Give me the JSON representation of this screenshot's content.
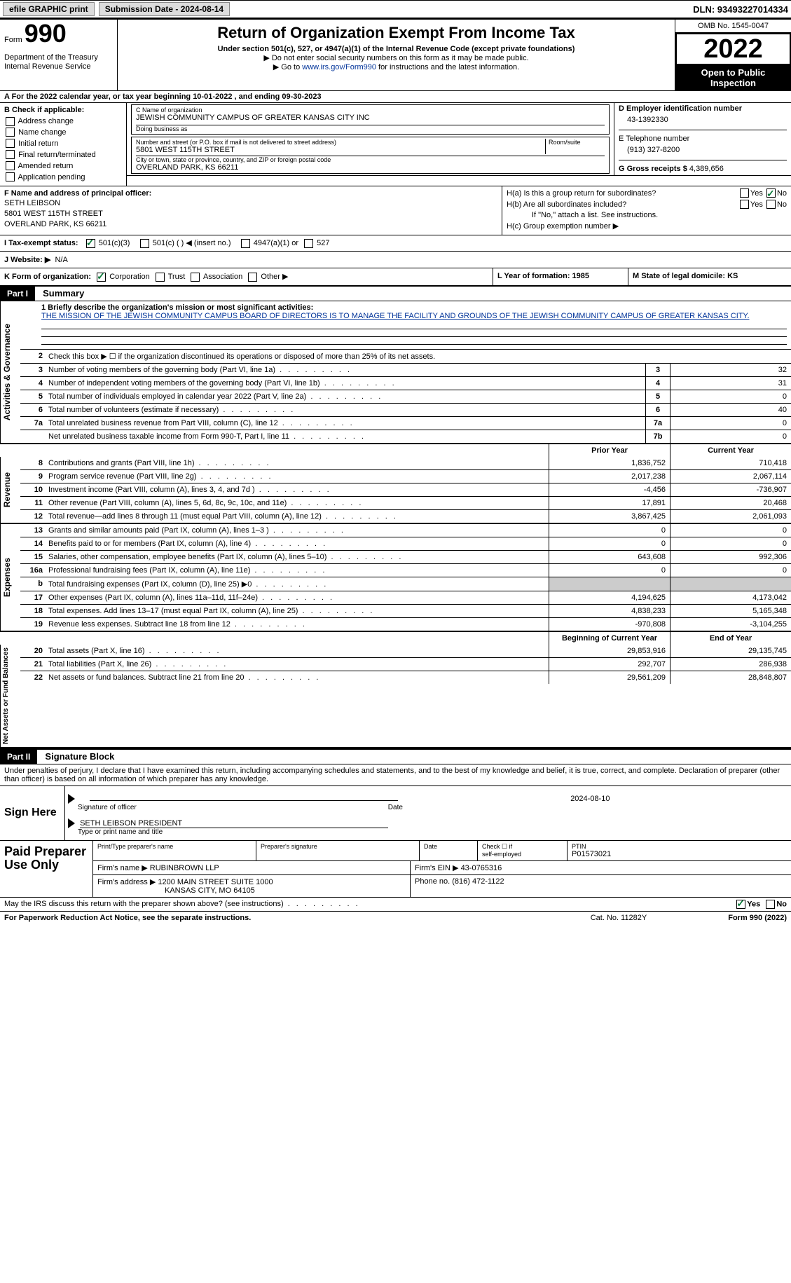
{
  "topbar": {
    "efile": "efile GRAPHIC print",
    "submission": "Submission Date - 2024-08-14",
    "dln": "DLN: 93493227014334"
  },
  "header": {
    "form_label": "Form",
    "form_num": "990",
    "title": "Return of Organization Exempt From Income Tax",
    "sub": "Under section 501(c), 527, or 4947(a)(1) of the Internal Revenue Code (except private foundations)",
    "note1": "▶ Do not enter social security numbers on this form as it may be made public.",
    "note2_pre": "▶ Go to ",
    "note2_link": "www.irs.gov/Form990",
    "note2_post": " for instructions and the latest information.",
    "omb": "OMB No. 1545-0047",
    "year": "2022",
    "open": "Open to Public Inspection",
    "dept": "Department of the Treasury",
    "irs": "Internal Revenue Service"
  },
  "row_a": "A For the 2022 calendar year, or tax year beginning 10-01-2022    , and ending 09-30-2023",
  "col_b": {
    "head": "B Check if applicable:",
    "items": [
      "Address change",
      "Name change",
      "Initial return",
      "Final return/terminated",
      "Amended return",
      "Application pending"
    ]
  },
  "box_c": {
    "name_label": "C Name of organization",
    "name": "JEWISH COMMUNITY CAMPUS OF GREATER KANSAS CITY INC",
    "dba_label": "Doing business as",
    "addr_label": "Number and street (or P.O. box if mail is not delivered to street address)",
    "room_label": "Room/suite",
    "addr": "5801 WEST 115TH STREET",
    "city_label": "City or town, state or province, country, and ZIP or foreign postal code",
    "city": "OVERLAND PARK, KS  66211"
  },
  "box_d": {
    "label": "D Employer identification number",
    "val": "43-1392330",
    "tel_label": "E Telephone number",
    "tel": "(913) 327-8200",
    "gross_label": "G Gross receipts $",
    "gross": "4,389,656"
  },
  "row_f": {
    "label": "F  Name and address of principal officer:",
    "name": "SETH LEIBSON",
    "addr1": "5801 WEST 115TH STREET",
    "addr2": "OVERLAND PARK, KS  66211"
  },
  "row_h": {
    "ha": "H(a)  Is this a group return for subordinates?",
    "hb": "H(b)  Are all subordinates included?",
    "hb_note": "If \"No,\" attach a list. See instructions.",
    "hc": "H(c)  Group exemption number ▶",
    "yes": "Yes",
    "no": "No"
  },
  "row_i": {
    "label": "I    Tax-exempt status:",
    "o1": "501(c)(3)",
    "o2": "501(c) (  ) ◀ (insert no.)",
    "o3": "4947(a)(1) or",
    "o4": "527"
  },
  "row_j": {
    "label": "J   Website: ▶",
    "val": "N/A"
  },
  "row_k": {
    "k": "K Form of organization:",
    "corp": "Corporation",
    "trust": "Trust",
    "assoc": "Association",
    "other": "Other ▶",
    "l": "L Year of formation: 1985",
    "m": "M State of legal domicile: KS"
  },
  "parts": {
    "p1": "Part I",
    "p1_title": "Summary",
    "p2": "Part II",
    "p2_title": "Signature Block"
  },
  "vtabs": {
    "act": "Activities & Governance",
    "rev": "Revenue",
    "exp": "Expenses",
    "net": "Net Assets or Fund Balances"
  },
  "mission": {
    "label": "1   Briefly describe the organization's mission or most significant activities:",
    "text": "THE MISSION OF THE JEWISH COMMUNITY CAMPUS BOARD OF DIRECTORS IS TO MANAGE THE FACILITY AND GROUNDS OF THE JEWISH COMMUNITY CAMPUS OF GREATER KANSAS CITY."
  },
  "gov": {
    "l2": "Check this box ▶ ☐ if the organization discontinued its operations or disposed of more than 25% of its net assets.",
    "l3": "Number of voting members of the governing body (Part VI, line 1a)",
    "l4": "Number of independent voting members of the governing body (Part VI, line 1b)",
    "l5": "Total number of individuals employed in calendar year 2022 (Part V, line 2a)",
    "l6": "Total number of volunteers (estimate if necessary)",
    "l7a": "Total unrelated business revenue from Part VIII, column (C), line 12",
    "l7b": "Net unrelated business taxable income from Form 990-T, Part I, line 11",
    "v3": "32",
    "v4": "31",
    "v5": "0",
    "v6": "40",
    "v7a": "0",
    "v7b": "0"
  },
  "cols": {
    "prior": "Prior Year",
    "current": "Current Year",
    "begin": "Beginning of Current Year",
    "end": "End of Year"
  },
  "rev": [
    {
      "n": "8",
      "l": "Contributions and grants (Part VIII, line 1h)",
      "p": "1,836,752",
      "c": "710,418"
    },
    {
      "n": "9",
      "l": "Program service revenue (Part VIII, line 2g)",
      "p": "2,017,238",
      "c": "2,067,114"
    },
    {
      "n": "10",
      "l": "Investment income (Part VIII, column (A), lines 3, 4, and 7d )",
      "p": "-4,456",
      "c": "-736,907"
    },
    {
      "n": "11",
      "l": "Other revenue (Part VIII, column (A), lines 5, 6d, 8c, 9c, 10c, and 11e)",
      "p": "17,891",
      "c": "20,468"
    },
    {
      "n": "12",
      "l": "Total revenue—add lines 8 through 11 (must equal Part VIII, column (A), line 12)",
      "p": "3,867,425",
      "c": "2,061,093"
    }
  ],
  "exp": [
    {
      "n": "13",
      "l": "Grants and similar amounts paid (Part IX, column (A), lines 1–3 )",
      "p": "0",
      "c": "0"
    },
    {
      "n": "14",
      "l": "Benefits paid to or for members (Part IX, column (A), line 4)",
      "p": "0",
      "c": "0"
    },
    {
      "n": "15",
      "l": "Salaries, other compensation, employee benefits (Part IX, column (A), lines 5–10)",
      "p": "643,608",
      "c": "992,306"
    },
    {
      "n": "16a",
      "l": "Professional fundraising fees (Part IX, column (A), line 11e)",
      "p": "0",
      "c": "0"
    },
    {
      "n": "b",
      "l": "Total fundraising expenses (Part IX, column (D), line 25) ▶0",
      "p": "",
      "c": "",
      "grey": true
    },
    {
      "n": "17",
      "l": "Other expenses (Part IX, column (A), lines 11a–11d, 11f–24e)",
      "p": "4,194,625",
      "c": "4,173,042"
    },
    {
      "n": "18",
      "l": "Total expenses. Add lines 13–17 (must equal Part IX, column (A), line 25)",
      "p": "4,838,233",
      "c": "5,165,348"
    },
    {
      "n": "19",
      "l": "Revenue less expenses. Subtract line 18 from line 12",
      "p": "-970,808",
      "c": "-3,104,255"
    }
  ],
  "net": [
    {
      "n": "20",
      "l": "Total assets (Part X, line 16)",
      "p": "29,853,916",
      "c": "29,135,745"
    },
    {
      "n": "21",
      "l": "Total liabilities (Part X, line 26)",
      "p": "292,707",
      "c": "286,938"
    },
    {
      "n": "22",
      "l": "Net assets or fund balances. Subtract line 21 from line 20",
      "p": "29,561,209",
      "c": "28,848,807"
    }
  ],
  "sig": {
    "decl": "Under penalties of perjury, I declare that I have examined this return, including accompanying schedules and statements, and to the best of my knowledge and belief, it is true, correct, and complete. Declaration of preparer (other than officer) is based on all information of which preparer has any knowledge.",
    "sign_here": "Sign Here",
    "sig_officer": "Signature of officer",
    "date": "Date",
    "date_val": "2024-08-10",
    "name_title": "SETH LEIBSON  PRESIDENT",
    "type_name": "Type or print name and title"
  },
  "prep": {
    "title": "Paid Preparer Use Only",
    "h1": "Print/Type preparer's name",
    "h2": "Preparer's signature",
    "h3": "Date",
    "h4a": "Check ☐ if",
    "h4b": "self-employed",
    "h5": "PTIN",
    "ptin": "P01573021",
    "firm_label": "Firm's name    ▶",
    "firm": "RUBINBROWN LLP",
    "ein_label": "Firm's EIN ▶",
    "ein": "43-0765316",
    "addr_label": "Firm's address ▶",
    "addr1": "1200 MAIN STREET SUITE 1000",
    "addr2": "KANSAS CITY, MO  64105",
    "phone_label": "Phone no.",
    "phone": "(816) 472-1122"
  },
  "footer": {
    "discuss": "May the IRS discuss this return with the preparer shown above? (see instructions)",
    "yes": "Yes",
    "no": "No",
    "pra": "For Paperwork Reduction Act Notice, see the separate instructions.",
    "cat": "Cat. No. 11282Y",
    "form": "Form 990 (2022)"
  }
}
